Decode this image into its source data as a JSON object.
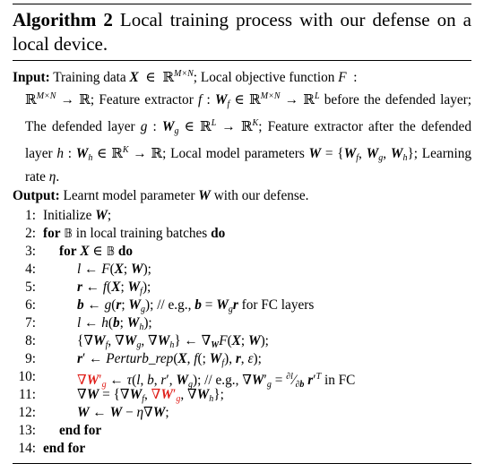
{
  "algorithm": {
    "label": "Algorithm 2",
    "caption": "Local training process with our defense on a local device."
  },
  "io": {
    "input_kw": "Input:",
    "output_kw": "Output:"
  },
  "keywords": {
    "for": "for",
    "in": "in",
    "do": "do",
    "end_for": "end for"
  },
  "line_numbers": [
    "1:",
    "2:",
    "3:",
    "4:",
    "5:",
    "6:",
    "7:",
    "8:",
    "9:",
    "10:",
    "11:",
    "12:",
    "13:",
    "14:"
  ],
  "text": {
    "initialize": "Initialize",
    "local_training_batches": "in local training batches",
    "eg_fc_6": "// e.g.,",
    "fc_layers": "for FC layers",
    "eg_fc_10": "// e.g.,",
    "in_fc": "in FC"
  }
}
